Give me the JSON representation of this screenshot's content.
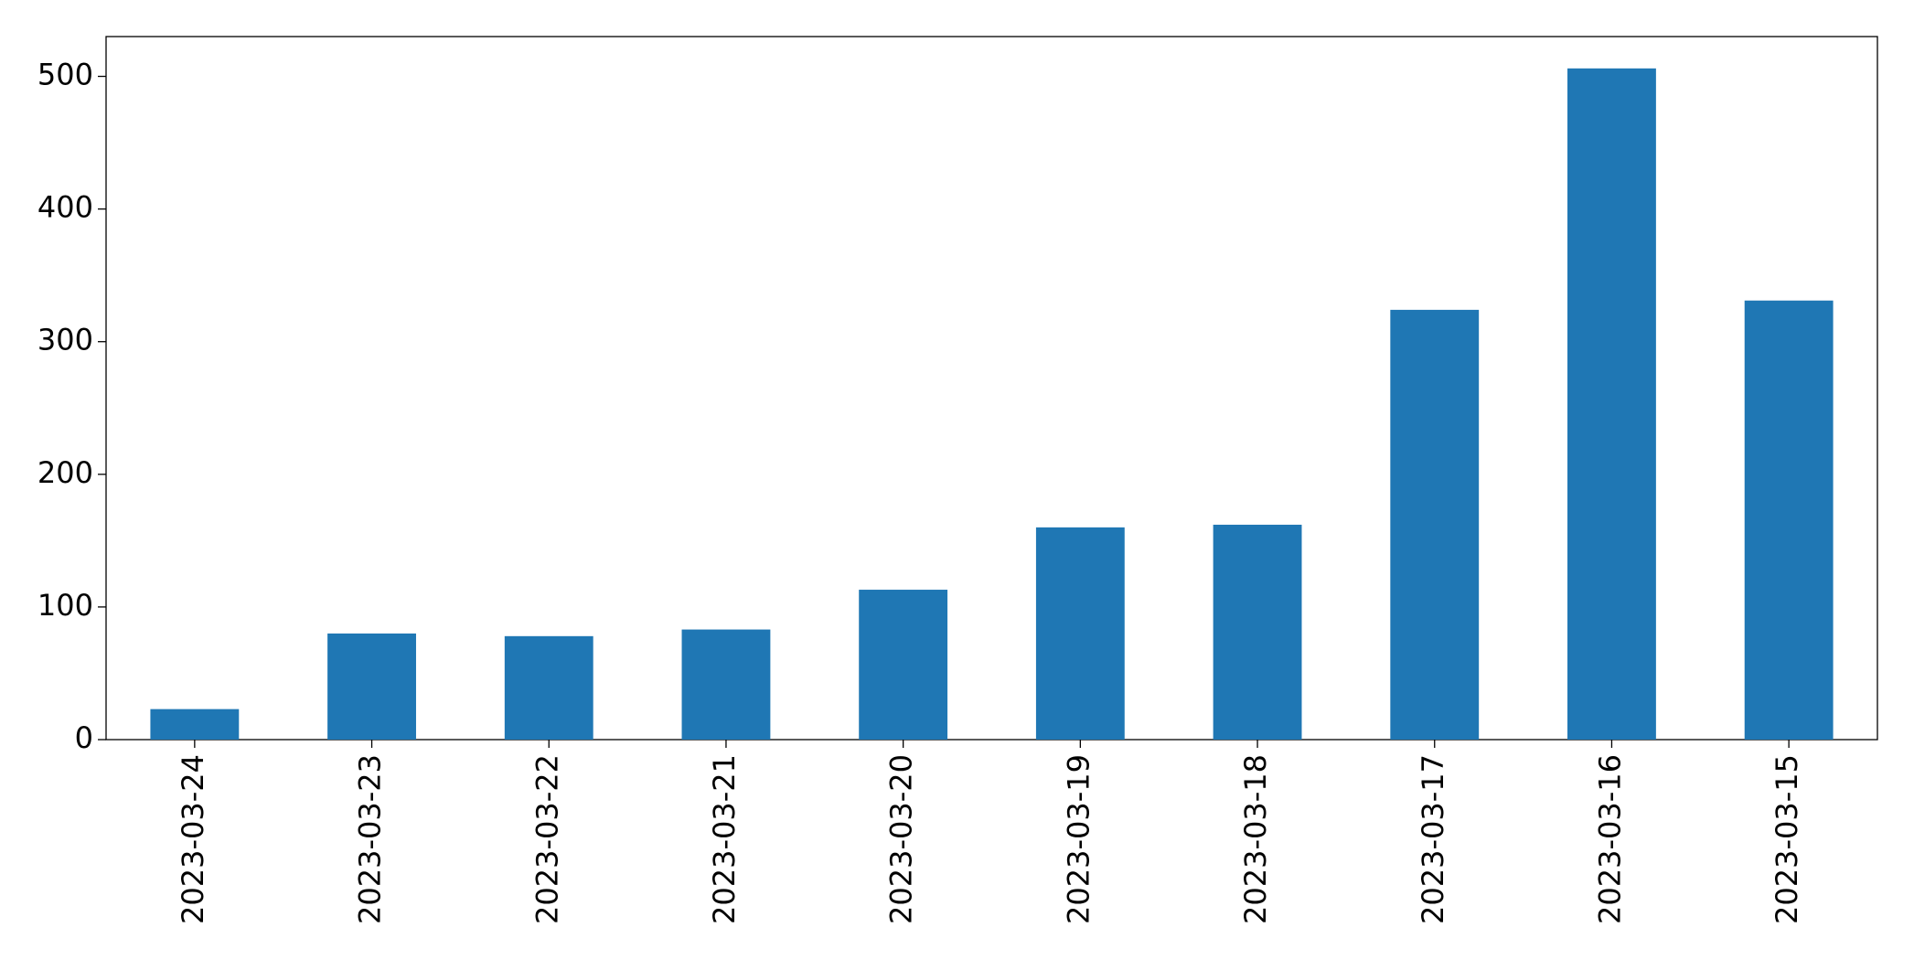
{
  "chart_data": {
    "type": "bar",
    "categories": [
      "2023-03-24",
      "2023-03-23",
      "2023-03-22",
      "2023-03-21",
      "2023-03-20",
      "2023-03-19",
      "2023-03-18",
      "2023-03-17",
      "2023-03-16",
      "2023-03-15"
    ],
    "values": [
      23,
      80,
      78,
      83,
      113,
      160,
      162,
      324,
      506,
      331
    ],
    "color": "#1f77b4",
    "ylim": [
      0,
      530
    ],
    "yticks": [
      0,
      100,
      200,
      300,
      400,
      500
    ],
    "grid": false
  }
}
